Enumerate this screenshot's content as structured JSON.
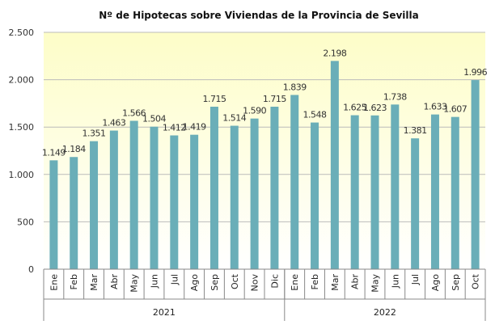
{
  "chart_data": {
    "type": "bar",
    "title": "Nº de Hipotecas sobre Viviendas de la Provincia de Sevilla",
    "xlabel": "",
    "ylabel": "",
    "ylim": [
      0,
      2500
    ],
    "yticks": [
      0,
      500,
      1000,
      1500,
      2000,
      2500
    ],
    "ytick_labels": [
      "0",
      "500",
      "1.000",
      "1.500",
      "2.000",
      "2.500"
    ],
    "grid": true,
    "legend": "none",
    "bar_color": "#6aaeb8",
    "background_colors": [
      "#fdfdc8",
      "#ffffff"
    ],
    "groups": [
      {
        "label": "2021",
        "categories": [
          "Ene",
          "Feb",
          "Mar",
          "Abr",
          "May",
          "Jun",
          "Jul",
          "Ago",
          "Sep",
          "Oct",
          "Nov",
          "Dic"
        ],
        "values": [
          1149,
          1184,
          1351,
          1463,
          1566,
          1504,
          1412,
          1419,
          1715,
          1514,
          1590,
          1715
        ],
        "value_labels": [
          "1.149",
          "1.184",
          "1.351",
          "1.463",
          "1.566",
          "1.504",
          "1.412",
          "1.419",
          "1.715",
          "1.514",
          "1.590",
          "1.715"
        ]
      },
      {
        "label": "2022",
        "categories": [
          "Ene",
          "Feb",
          "Mar",
          "Abr",
          "May",
          "Jun",
          "Jul",
          "Ago",
          "Sep",
          "Oct"
        ],
        "values": [
          1839,
          1548,
          2198,
          1625,
          1623,
          1738,
          1381,
          1633,
          1607,
          1996
        ],
        "value_labels": [
          "1.839",
          "1.548",
          "2.198",
          "1.625",
          "1.623",
          "1.738",
          "1.381",
          "1.633",
          "1.607",
          "1.996"
        ]
      }
    ]
  }
}
